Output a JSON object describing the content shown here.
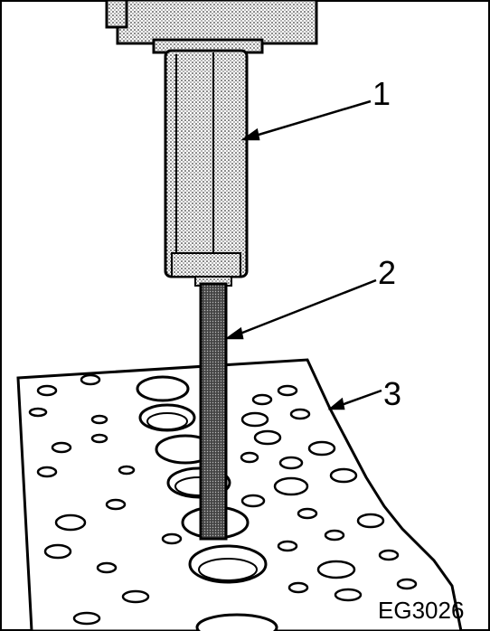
{
  "figure_id": "EG3026",
  "callouts": {
    "c1": "1",
    "c2": "2",
    "c3": "3"
  },
  "icons": {
    "tool_body": "slide-hammer-body",
    "shaft": "guide-shaft",
    "block": "cylinder-head"
  }
}
